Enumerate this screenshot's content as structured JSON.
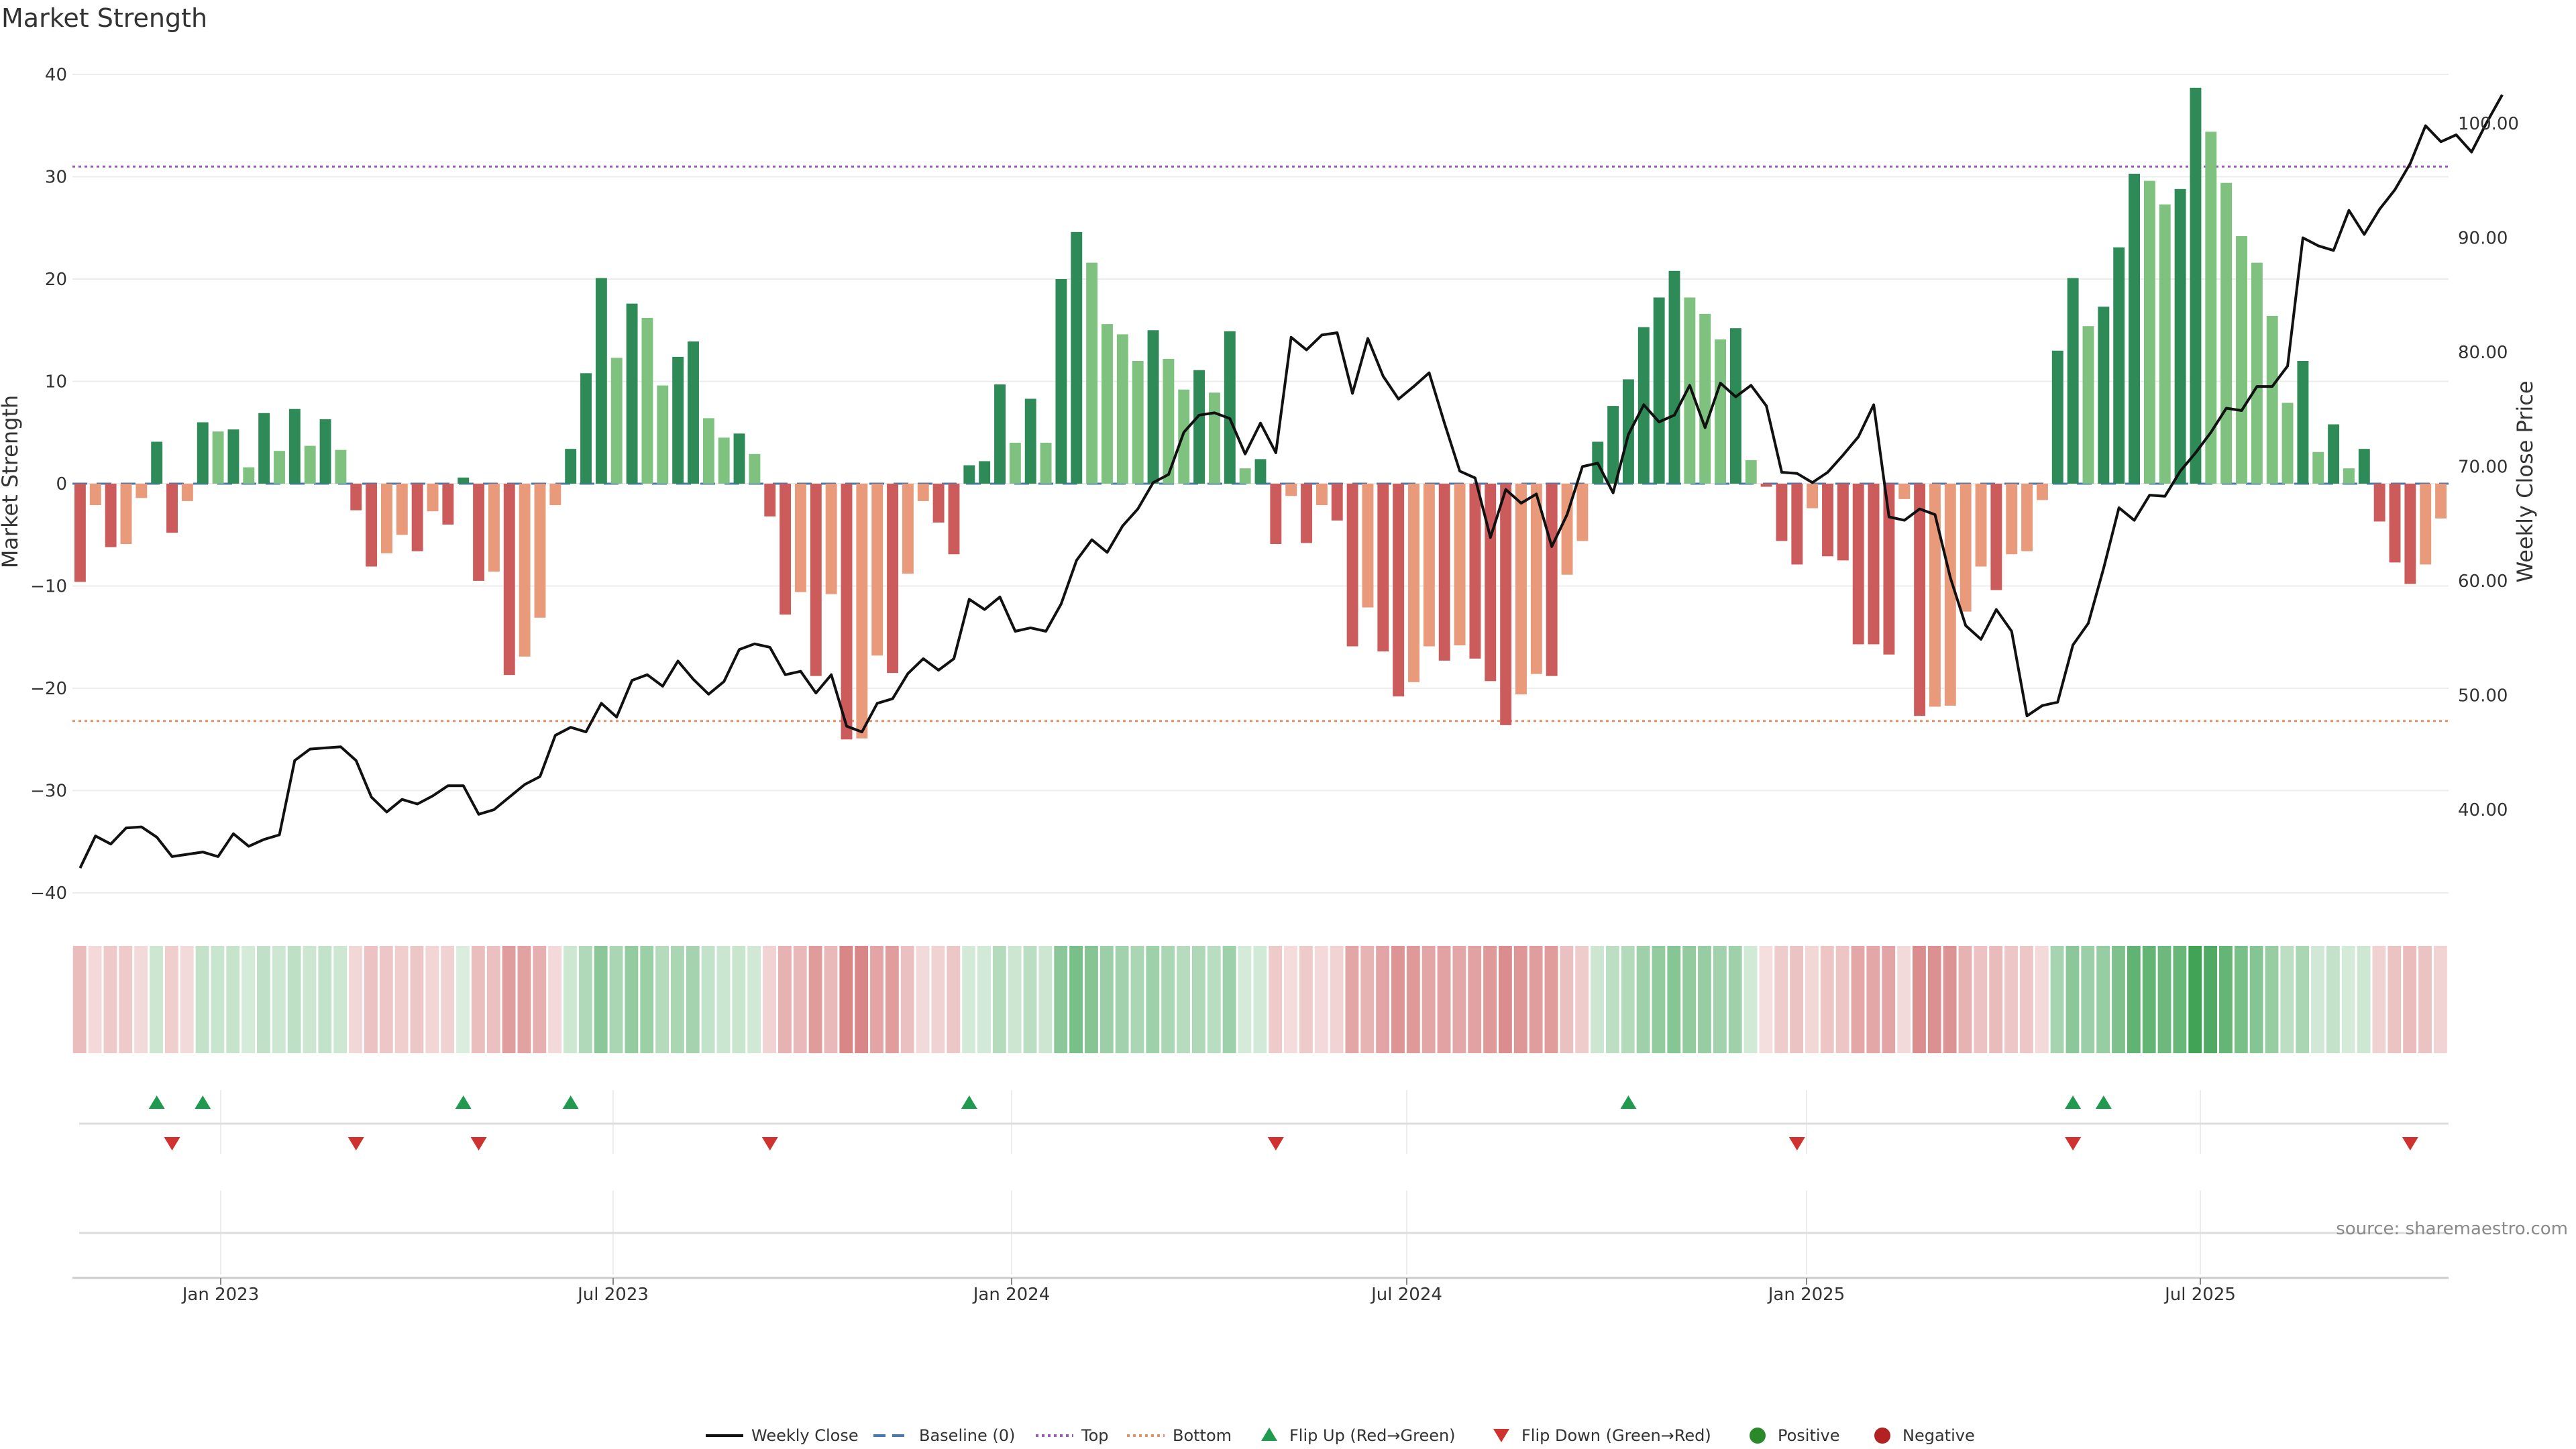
{
  "chart_data": {
    "type": "bar",
    "title": "Market Strength",
    "ylabel": "Market Strength",
    "y2label": "Weekly Close Price",
    "ylim": [
      -42,
      42
    ],
    "y2lim": [
      32,
      105
    ],
    "yticks": [
      "40",
      "30",
      "20",
      "10",
      "0",
      "−10",
      "−20",
      "−30",
      "−40"
    ],
    "y2ticks": [
      "100.00",
      "90.00",
      "80.00",
      "70.00",
      "60.00",
      "50.00",
      "40.00"
    ],
    "xticks": [
      "Jan 2023",
      "Jul 2023",
      "Jan 2024",
      "Jul 2024",
      "Jan 2025",
      "Jul 2025"
    ],
    "reference_lines": {
      "top": 31,
      "bottom": -23.2,
      "baseline": 0
    },
    "strength": [
      -9.6,
      -2.1,
      -6.2,
      -5.9,
      -1.4,
      4.1,
      -4.8,
      -1.7,
      6,
      5.1,
      5.3,
      1.6,
      6.9,
      3.2,
      7.3,
      3.7,
      6.3,
      3.3,
      -2.6,
      -8.1,
      -6.8,
      -5,
      -6.6,
      -2.7,
      -4,
      0.6,
      -9.5,
      -8.6,
      -18.7,
      -16.9,
      -13.1,
      -2.1,
      3.4,
      10.8,
      20.1,
      12.3,
      17.6,
      16.2,
      9.6,
      12.4,
      13.9,
      6.4,
      4.5,
      4.9,
      2.9,
      -3.2,
      -12.8,
      -10.6,
      -18.8,
      -10.8,
      -25,
      -24.9,
      -16.8,
      -18.5,
      -8.8,
      -1.7,
      -3.8,
      -6.9,
      1.8,
      2.2,
      9.7,
      4,
      8.3,
      4,
      20,
      24.6,
      21.6,
      15.6,
      14.6,
      12,
      15,
      12.2,
      9.2,
      11.1,
      8.9,
      14.9,
      1.5,
      2.4,
      -5.9,
      -1.2,
      -5.8,
      -2.1,
      -3.6,
      -15.9,
      -12.1,
      -16.4,
      -20.8,
      -19.4,
      -15.9,
      -17.3,
      -15.8,
      -17.1,
      -19.3,
      -23.6,
      -20.6,
      -18.6,
      -18.8,
      -8.9,
      -5.6,
      4.1,
      7.6,
      10.2,
      15.3,
      18.2,
      20.8,
      18.2,
      16.6,
      14.1,
      15.2,
      2.3,
      -0.3,
      -5.6,
      -7.9,
      -2.4,
      -7.1,
      -7.5,
      -15.7,
      -15.7,
      -16.7,
      -1.5,
      -22.7,
      -21.8,
      -21.7,
      -12.5,
      -8.1,
      -10.4,
      -6.9,
      -6.6,
      -1.6,
      13,
      20.1,
      15.4,
      17.3,
      23.1,
      30.3,
      29.6,
      27.3,
      28.8,
      38.7,
      34.4,
      29.4,
      24.2,
      21.6,
      16.4,
      7.9,
      12,
      3.1,
      5.8,
      1.5,
      3.4,
      -3.7,
      -7.7,
      -9.8,
      -7.9,
      -3.4
    ],
    "weekly_close": [
      34.9,
      37.7,
      37.0,
      38.4,
      38.5,
      37.6,
      35.9,
      36.1,
      36.3,
      35.9,
      37.9,
      36.8,
      37.4,
      37.8,
      44.3,
      45.3,
      45.4,
      45.5,
      44.3,
      41.1,
      39.8,
      40.9,
      40.5,
      41.2,
      42.1,
      42.1,
      39.6,
      40.0,
      41.1,
      42.2,
      42.9,
      46.5,
      47.2,
      46.8,
      49.3,
      48.1,
      51.3,
      51.8,
      50.8,
      53.0,
      51.4,
      50.1,
      51.2,
      54.0,
      54.5,
      54.2,
      51.8,
      52.1,
      50.2,
      51.8,
      47.3,
      46.8,
      49.3,
      49.7,
      51.9,
      53.2,
      52.2,
      53.2,
      58.4,
      57.5,
      58.6,
      55.6,
      55.9,
      55.6,
      58.0,
      61.8,
      63.6,
      62.5,
      64.8,
      66.3,
      68.6,
      69.3,
      73.0,
      74.5,
      74.7,
      74.2,
      71.1,
      73.8,
      71.2,
      81.3,
      80.2,
      81.5,
      81.7,
      76.4,
      81.2,
      77.9,
      75.9,
      77.0,
      78.2,
      73.8,
      69.6,
      69.0,
      63.8,
      68.0,
      66.8,
      67.6,
      63.0,
      65.8,
      70.0,
      70.3,
      67.7,
      72.8,
      75.4,
      73.9,
      74.5,
      77.1,
      73.4,
      77.3,
      76.1,
      77.1,
      75.3,
      69.5,
      69.4,
      68.6,
      69.5,
      71.0,
      72.6,
      75.4,
      65.6,
      65.3,
      66.3,
      65.8,
      60.3,
      56.1,
      54.9,
      57.5,
      55.6,
      48.2,
      49.1,
      49.4,
      54.4,
      56.3,
      61.1,
      66.4,
      65.3,
      67.5,
      67.4,
      69.6,
      71.2,
      73.0,
      75.1,
      74.9,
      77.0,
      77.0,
      78.8,
      90.0,
      89.3,
      88.9,
      92.4,
      90.3,
      92.5,
      94.2,
      96.5,
      99.8,
      98.4,
      99.0,
      97.5,
      100.1,
      102.5
    ]
  },
  "flips_up": [
    "Flip Up (Red→Green)"
  ],
  "legend": [
    {
      "label": "Weekly Close"
    },
    {
      "label": "Baseline (0)"
    },
    {
      "label": "Top"
    },
    {
      "label": "Bottom"
    },
    {
      "label": "Flip Up (Red→Green)"
    },
    {
      "label": "Flip Down (Green→Red)"
    },
    {
      "label": "Positive"
    },
    {
      "label": "Negative"
    }
  ],
  "source_text": "source: sharemaestro.com",
  "colors": {
    "pos_dark": "#2e8a57",
    "pos_light": "#7fc27f",
    "neg_dark": "#cc5c5c",
    "neg_light": "#e89a7a",
    "line": "#111111",
    "baseline": "#4a78b0",
    "top": "#9b59b6",
    "bottom": "#e6915f",
    "flip_up": "#1f9a4f",
    "flip_down": "#d0332f",
    "positive": "#2a8a2a",
    "negative": "#b22222"
  }
}
